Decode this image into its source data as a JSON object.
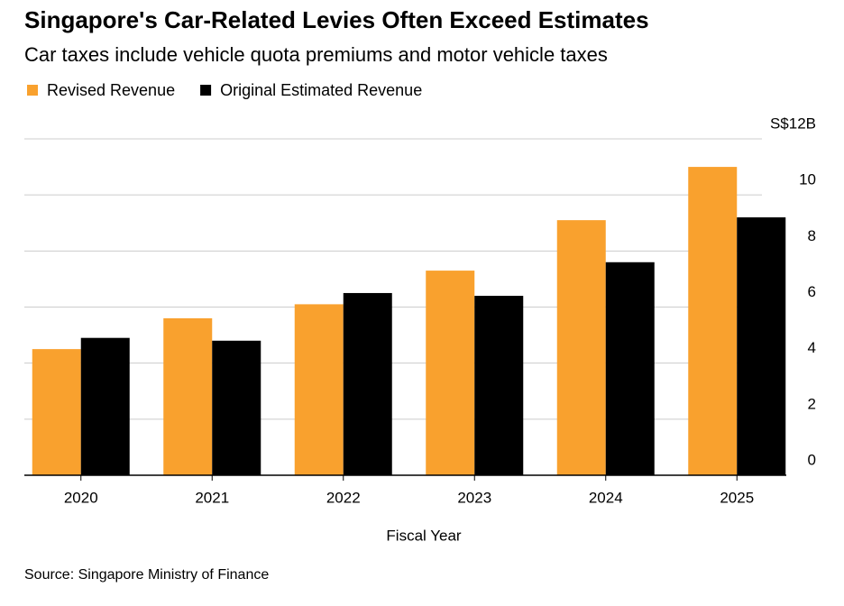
{
  "chart_data": {
    "type": "bar",
    "title": "Singapore's Car-Related Levies Often Exceed Estimates",
    "subtitle": "Car taxes include vehicle quota premiums and motor vehicle taxes",
    "x_label": "Fiscal Year",
    "source": "Source: Singapore Ministry of Finance",
    "categories": [
      "2020",
      "2021",
      "2022",
      "2023",
      "2024",
      "2025"
    ],
    "series": [
      {
        "name": "Revised Revenue",
        "color": "#f9a12e",
        "values": [
          4.5,
          5.6,
          6.1,
          7.3,
          9.1,
          11.0
        ]
      },
      {
        "name": "Original Estimated Revenue",
        "color": "#000000",
        "values": [
          4.9,
          4.8,
          6.5,
          6.4,
          7.6,
          9.2
        ]
      }
    ],
    "ylim": [
      0,
      12
    ],
    "yticks": [
      0,
      2,
      4,
      6,
      8,
      10,
      {
        "value": 12,
        "label": "S$12B"
      }
    ],
    "grid": true,
    "legend": "top-left"
  }
}
